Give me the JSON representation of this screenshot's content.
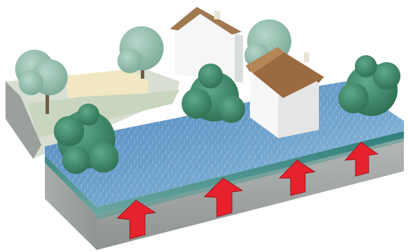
{
  "scene": {
    "subject": "illustration",
    "colors": {
      "water": "#6f9fc8",
      "water_edge": "#3a7f86",
      "soil": "#9fa3a2",
      "grass": "#cfd9c6",
      "path": "#f0e7c4",
      "roof": "#9b6a3e",
      "wall": "#f7f7f7",
      "tree_dark": "#3d8a66",
      "tree_light": "#8dbba9",
      "arrow": "#e6222c"
    },
    "houses": [
      {
        "name": "house-back",
        "roof": "#a0784f"
      },
      {
        "name": "house-front",
        "roof": "#9b6a3e"
      }
    ],
    "trees": [
      {
        "name": "tree-back-left",
        "tone": "light"
      },
      {
        "name": "tree-back-center",
        "tone": "light"
      },
      {
        "name": "tree-back-right",
        "tone": "light"
      },
      {
        "name": "tree-center",
        "tone": "dark"
      },
      {
        "name": "tree-front-left",
        "tone": "dark"
      },
      {
        "name": "tree-right",
        "tone": "dark"
      }
    ],
    "arrows": [
      {
        "name": "arrow-1"
      },
      {
        "name": "arrow-2"
      },
      {
        "name": "arrow-3"
      },
      {
        "name": "arrow-4"
      }
    ]
  }
}
